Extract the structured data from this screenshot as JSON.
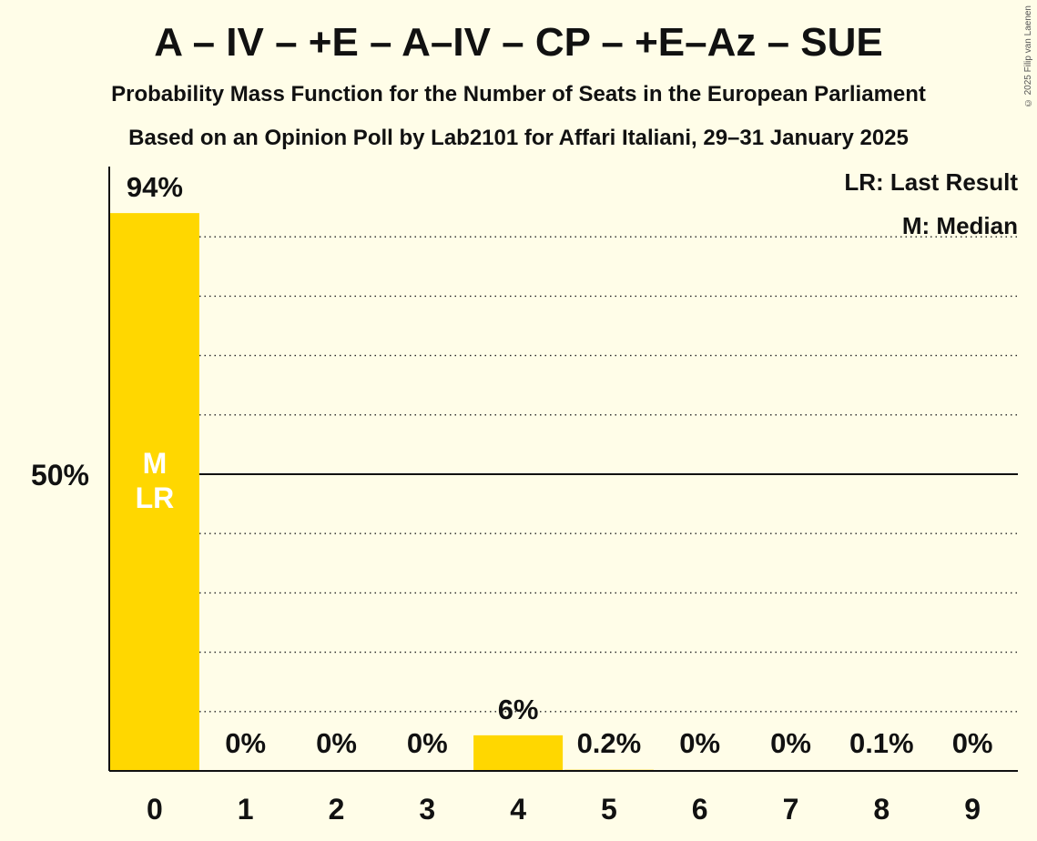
{
  "title": "A – IV – +E – A–IV – CP – +E–Az – SUE",
  "subtitle1": "Probability Mass Function for the Number of Seats in the European Parliament",
  "subtitle2": "Based on an Opinion Poll by Lab2101 for Affari Italiani, 29–31 January 2025",
  "copyright": "© 2025 Filip van Laenen",
  "legend": {
    "last_result": "LR: Last Result",
    "median": "M: Median"
  },
  "chart_data": {
    "type": "bar",
    "categories": [
      "0",
      "1",
      "2",
      "3",
      "4",
      "5",
      "6",
      "7",
      "8",
      "9"
    ],
    "values": [
      94,
      0,
      0,
      0,
      6,
      0.2,
      0,
      0,
      0.1,
      0
    ],
    "value_labels": [
      "94%",
      "0%",
      "0%",
      "0%",
      "6%",
      "0.2%",
      "0%",
      "0%",
      "0.1%",
      "0%"
    ],
    "ylim": [
      0,
      100
    ],
    "ytick_label": "50%",
    "ytick_value": 50,
    "bar_color": "#ffd700",
    "median_index": 0,
    "last_result_index": 0,
    "median_marker": "M",
    "last_result_marker": "LR"
  }
}
